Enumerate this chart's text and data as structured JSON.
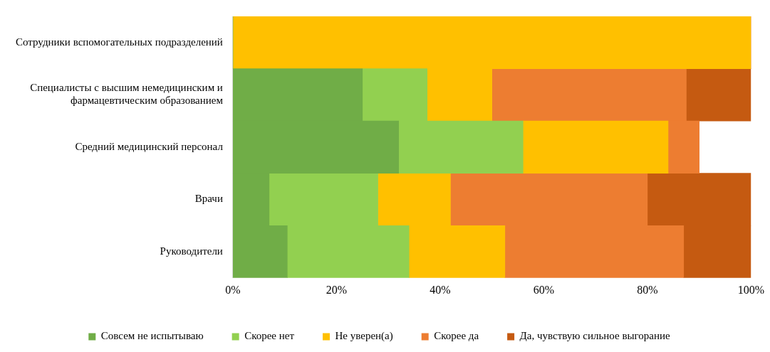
{
  "chart_data": {
    "type": "bar",
    "orientation": "horizontal",
    "stacked": true,
    "legend": "bottom",
    "grid": false,
    "categories": [
      "Сотрудники вспомогательных подразделений",
      "Специалисты с высшим немедицинским и фармацевтическим образованием",
      "Средний медицинский персонал",
      "Врачи",
      "Руководители"
    ],
    "series": [
      {
        "name": "Совсем не испытываю",
        "color": "#70ad47",
        "values": [
          0,
          25,
          32,
          7,
          10.5
        ]
      },
      {
        "name": "Скорее нет",
        "color": "#92d050",
        "values": [
          0,
          12.5,
          24,
          21,
          23.5
        ]
      },
      {
        "name": "Не уверен(а)",
        "color": "#ffc000",
        "values": [
          100,
          12.5,
          28,
          14,
          18.5
        ]
      },
      {
        "name": "Скорее да",
        "color": "#ed7d31",
        "values": [
          0,
          37.5,
          6,
          38,
          34.5
        ]
      },
      {
        "name": "Да, чувствую сильное выгорание",
        "color": "#c55a11",
        "values": [
          0,
          12.5,
          0,
          20,
          13
        ]
      }
    ],
    "xlim": [
      0,
      100
    ],
    "xticks": [
      {
        "value": 0,
        "label": "0%"
      },
      {
        "value": 20,
        "label": "20%"
      },
      {
        "value": 40,
        "label": "40%"
      },
      {
        "value": 60,
        "label": "60%"
      },
      {
        "value": 80,
        "label": "80%"
      },
      {
        "value": 100,
        "label": "100%"
      }
    ]
  }
}
